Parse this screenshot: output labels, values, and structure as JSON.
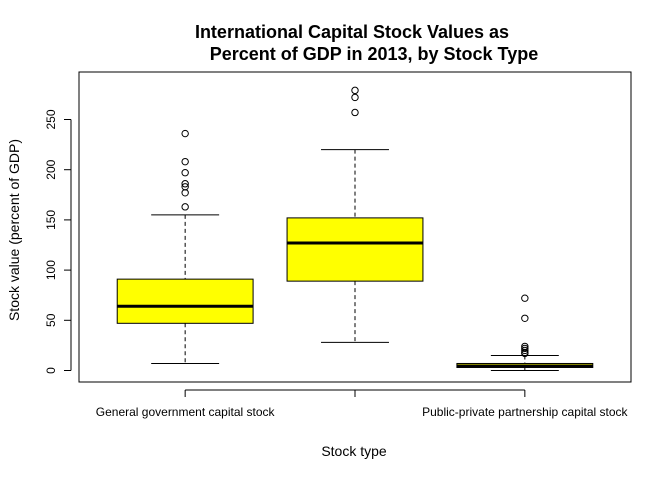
{
  "chart_data": {
    "type": "box",
    "title": [
      "International Capital Stock Values as",
      "Percent of GDP in 2013, by Stock Type"
    ],
    "xlabel": "Stock type",
    "ylabel": "Stock value (percent of GDP)",
    "ylim": [
      -10,
      295
    ],
    "yticks": [
      0,
      50,
      100,
      150,
      200,
      250
    ],
    "categories": [
      "General government capital stock",
      "",
      "Public-private partnership capital stock"
    ],
    "box_color": "#ffff00",
    "boxes": [
      {
        "category": "General government capital stock",
        "whisker_low": 7,
        "q1": 47,
        "median": 64,
        "q3": 91,
        "whisker_high": 155,
        "outliers": [
          163,
          177,
          183,
          186,
          197,
          208,
          236
        ]
      },
      {
        "category": "",
        "whisker_low": 28,
        "q1": 89,
        "median": 127,
        "q3": 152,
        "whisker_high": 220,
        "outliers": [
          257,
          272,
          279
        ]
      },
      {
        "category": "Public-private partnership capital stock",
        "whisker_low": 0,
        "q1": 3,
        "median": 4.5,
        "q3": 7,
        "whisker_high": 15,
        "outliers": [
          17,
          18,
          20,
          22,
          24,
          52,
          72
        ]
      }
    ]
  }
}
